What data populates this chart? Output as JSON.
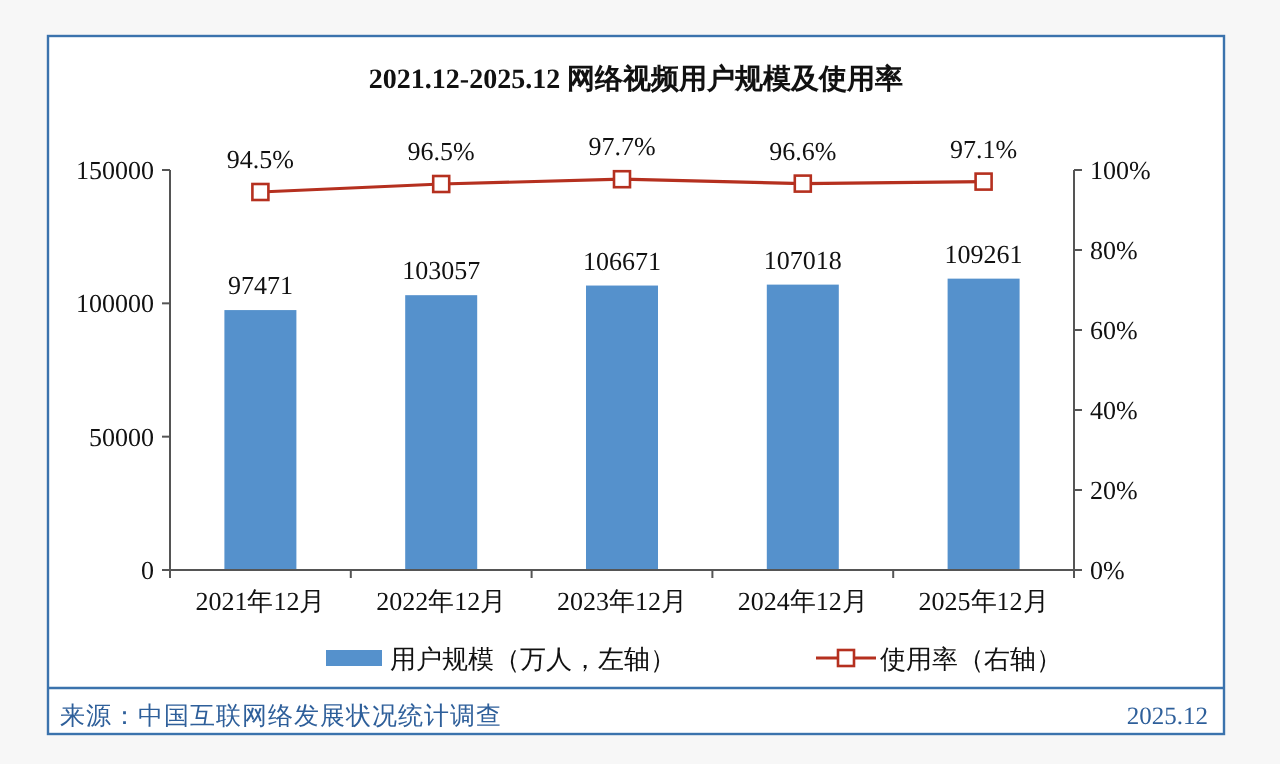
{
  "chart_data": {
    "type": "bar",
    "title": "2021.12-2025.12 网络视频用户规模及使用率",
    "categories": [
      "2021年12月",
      "2022年12月",
      "2023年12月",
      "2024年12月",
      "2025年12月"
    ],
    "series": [
      {
        "name": "用户规模（万人，左轴）",
        "color": "#5591cc",
        "values": [
          97471,
          103057,
          106671,
          107018,
          109261
        ],
        "value_labels": [
          "97471",
          "103057",
          "106671",
          "107018",
          "109261"
        ]
      },
      {
        "name": "使用率（右轴）",
        "type": "line",
        "axis": "y2",
        "color": "#b5301f",
        "marker": "square",
        "values": [
          94.5,
          96.5,
          97.7,
          96.6,
          97.1
        ],
        "value_labels": [
          "94.5%",
          "96.5%",
          "97.7%",
          "96.6%",
          "97.1%"
        ]
      }
    ],
    "ylim": [
      0,
      150000
    ],
    "yticks": [
      0,
      50000,
      100000,
      150000
    ],
    "y2lim": [
      0,
      100
    ],
    "y2ticks": [
      {
        "value": 0,
        "label": "0%"
      },
      {
        "value": 20,
        "label": "20%"
      },
      {
        "value": 40,
        "label": "40%"
      },
      {
        "value": 60,
        "label": "60%"
      },
      {
        "value": 80,
        "label": "80%"
      },
      {
        "value": 100,
        "label": "100%"
      }
    ],
    "grid": false,
    "legend": "bottom",
    "annotations": [
      "来源：中国互联网络发展状况统计调查",
      "2025.12"
    ]
  }
}
